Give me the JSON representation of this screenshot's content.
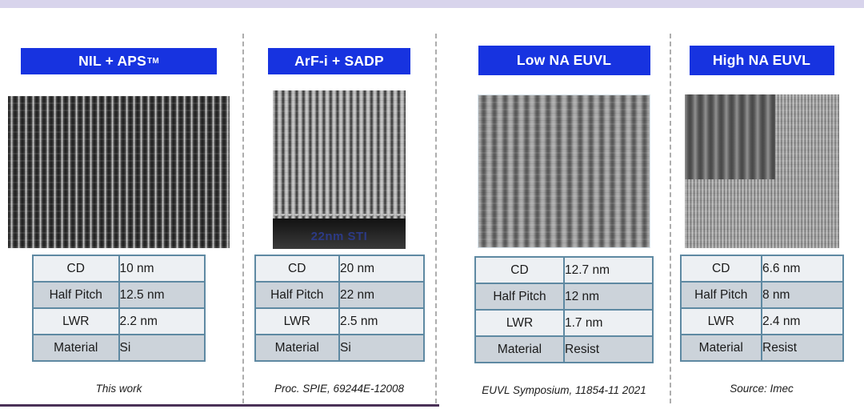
{
  "slide": {
    "top_bar_color": "#d8d4ec",
    "accent_blue": "#1733e0",
    "bottom_line_color": "#4a3157",
    "table_border_color": "#5e89a2",
    "table_row_light": "#edf0f3",
    "table_row_dark": "#ccd3da"
  },
  "columns": [
    {
      "header": "NIL + APS",
      "header_sup": "TM",
      "image": "sem-vertical-lines-dark-field",
      "table": {
        "rows": [
          {
            "label": "CD",
            "value": "10 nm"
          },
          {
            "label": "Half Pitch",
            "value": "12.5 nm"
          },
          {
            "label": "LWR",
            "value": "2.2 nm"
          },
          {
            "label": "Material",
            "value": "Si"
          }
        ]
      },
      "source": "This work"
    },
    {
      "header": "ArF-i + SADP",
      "image": "sem-vertical-lines-light-field",
      "image_overlay": "22nm STI",
      "table": {
        "rows": [
          {
            "label": "CD",
            "value": "20 nm"
          },
          {
            "label": "Half Pitch",
            "value": "22 nm"
          },
          {
            "label": "LWR",
            "value": "2.5 nm"
          },
          {
            "label": "Material",
            "value": "Si"
          }
        ]
      },
      "source": "Proc. SPIE, 69244E-12008"
    },
    {
      "header": "Low NA EUVL",
      "image": "sem-vertical-lines-grainy",
      "table": {
        "rows": [
          {
            "label": "CD",
            "value": "12.7 nm"
          },
          {
            "label": "Half Pitch",
            "value": "12 nm"
          },
          {
            "label": "LWR",
            "value": "1.7 nm"
          },
          {
            "label": "Material",
            "value": "Resist"
          }
        ]
      },
      "source": "EUVL Symposium, 11854-11 2021"
    },
    {
      "header": "High NA EUVL",
      "image": "sem-vertical-lines-fine-with-inset",
      "table": {
        "rows": [
          {
            "label": "CD",
            "value": "6.6 nm"
          },
          {
            "label": "Half Pitch",
            "value": "8 nm"
          },
          {
            "label": "LWR",
            "value": "2.4 nm"
          },
          {
            "label": "Material",
            "value": "Resist"
          }
        ]
      },
      "source": "Source: Imec"
    }
  ]
}
